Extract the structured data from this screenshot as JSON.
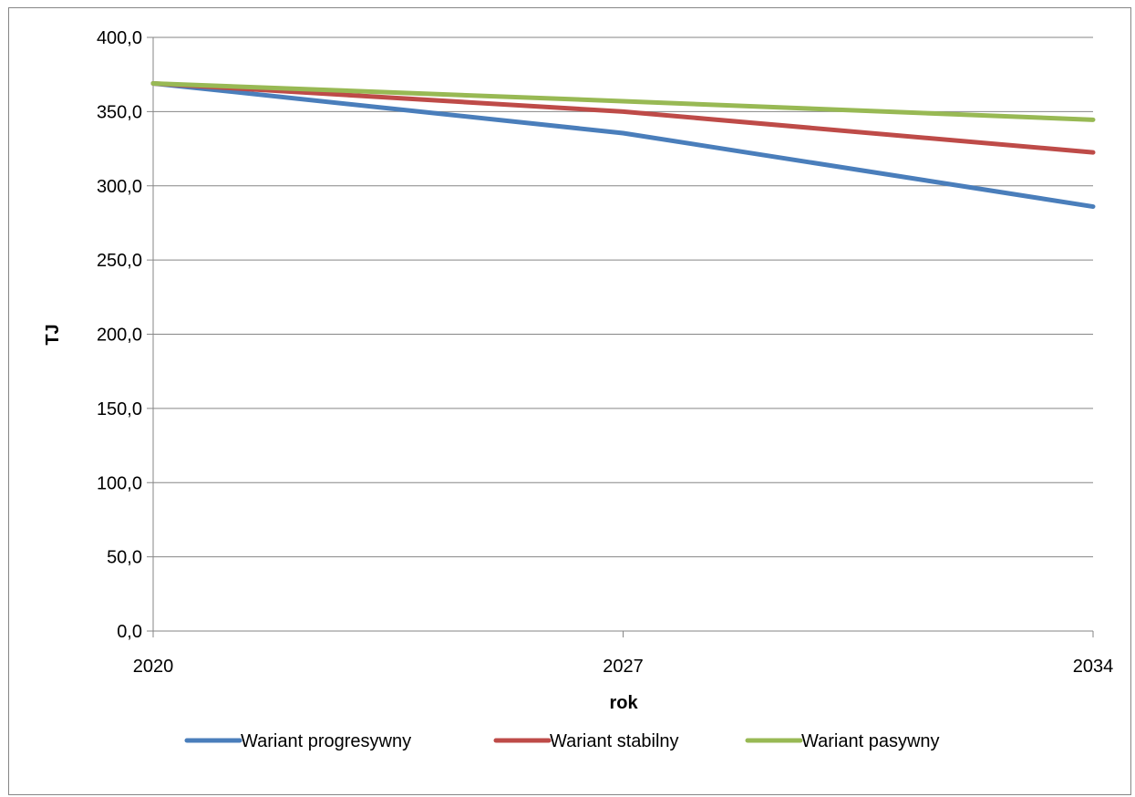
{
  "chart_data": {
    "type": "line",
    "title": "",
    "xlabel": "rok",
    "ylabel": "TJ",
    "x": [
      2020,
      2027,
      2034
    ],
    "x_tick_labels": [
      "2020",
      "2027",
      "2034"
    ],
    "ylim": [
      0,
      400
    ],
    "y_ticks": [
      0,
      50,
      100,
      150,
      200,
      250,
      300,
      350,
      400
    ],
    "y_tick_labels": [
      "0,0",
      "50,0",
      "100,0",
      "150,0",
      "200,0",
      "250,0",
      "300,0",
      "350,0",
      "400,0"
    ],
    "grid": true,
    "legend_position": "bottom",
    "series": [
      {
        "name": "Wariant progresywny",
        "color": "#4a7ebb",
        "values": [
          369.0,
          335.5,
          286.0
        ]
      },
      {
        "name": "Wariant stabilny",
        "color": "#be4b48",
        "values": [
          369.0,
          350.0,
          322.5
        ]
      },
      {
        "name": "Wariant pasywny",
        "color": "#98b954",
        "values": [
          369.0,
          357.0,
          344.5
        ]
      }
    ]
  }
}
